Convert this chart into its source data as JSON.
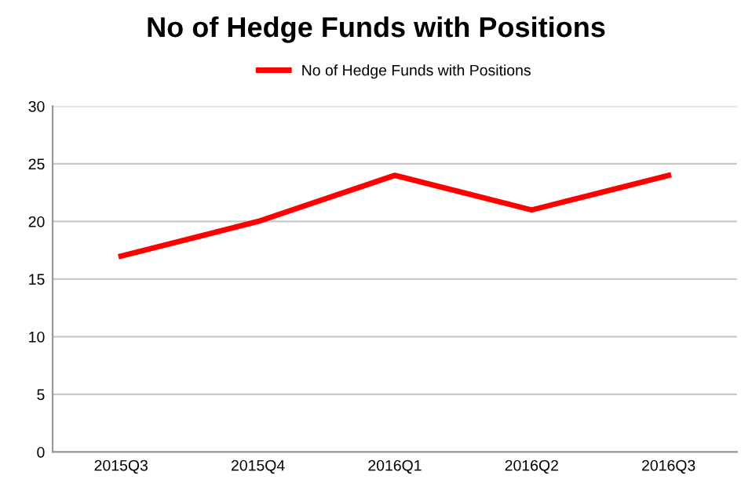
{
  "chart_data": {
    "type": "line",
    "title": "No of Hedge Funds with Positions",
    "categories": [
      "2015Q3",
      "2015Q4",
      "2016Q1",
      "2016Q2",
      "2016Q3"
    ],
    "series": [
      {
        "name": "No of Hedge Funds with Positions",
        "color": "#ff0000",
        "values": [
          17,
          20,
          24,
          21,
          24
        ]
      }
    ],
    "ylim": [
      0,
      30
    ],
    "yticks": [
      0,
      5,
      10,
      15,
      20,
      25,
      30
    ],
    "grid": "y",
    "legend": "top",
    "marker": "none",
    "line_style": "solid"
  }
}
